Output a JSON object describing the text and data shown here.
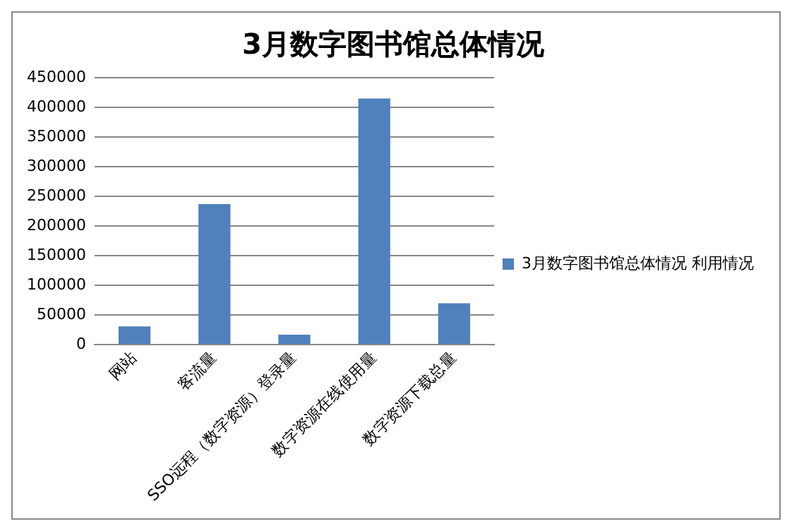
{
  "chart_data": {
    "type": "bar",
    "title": "3月数字图书馆总体情况",
    "categories": [
      "网站",
      "客流量",
      "SSO远程（数字资源）登录量",
      "数字资源在线使用量",
      "数字资源下载总量"
    ],
    "series": [
      {
        "name": "3月数字图书馆总体情况 利用情况",
        "color": "#4f81bd",
        "values": [
          31000,
          237000,
          17000,
          415000,
          70000
        ]
      }
    ],
    "ylim": [
      0,
      450000
    ],
    "yticks": [
      0,
      50000,
      100000,
      150000,
      200000,
      250000,
      300000,
      350000,
      400000,
      450000
    ],
    "grid": "y",
    "legend": "right"
  }
}
